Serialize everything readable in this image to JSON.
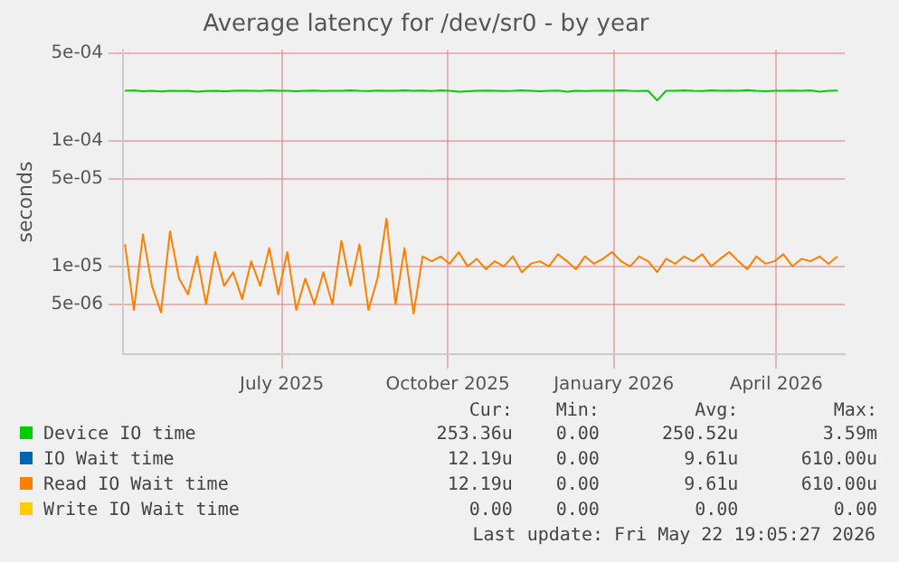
{
  "chart_data": {
    "type": "line",
    "title": "Average latency for /dev/sr0 - by year",
    "ylabel": "seconds",
    "log": "y",
    "grid": true,
    "legend": "bottom",
    "marker": "none",
    "x": [
      "2025-04-20",
      "2025-04-25",
      "2025-04-30",
      "2025-05-05",
      "2025-05-10",
      "2025-05-15",
      "2025-05-20",
      "2025-05-25",
      "2025-05-30",
      "2025-06-04",
      "2025-06-09",
      "2025-06-14",
      "2025-06-19",
      "2025-06-24",
      "2025-06-29",
      "2025-07-04",
      "2025-07-09",
      "2025-07-14",
      "2025-07-19",
      "2025-07-24",
      "2025-07-29",
      "2025-08-03",
      "2025-08-08",
      "2025-08-13",
      "2025-08-18",
      "2025-08-23",
      "2025-08-28",
      "2025-09-02",
      "2025-09-07",
      "2025-09-12",
      "2025-09-17",
      "2025-09-22",
      "2025-09-27",
      "2025-10-02",
      "2025-10-07",
      "2025-10-12",
      "2025-10-17",
      "2025-10-22",
      "2025-10-27",
      "2025-11-01",
      "2025-11-06",
      "2025-11-11",
      "2025-11-16",
      "2025-11-21",
      "2025-11-26",
      "2025-12-01",
      "2025-12-06",
      "2025-12-11",
      "2025-12-16",
      "2025-12-21",
      "2025-12-26",
      "2025-12-31",
      "2026-01-05",
      "2026-01-10",
      "2026-01-15",
      "2026-01-20",
      "2026-01-25",
      "2026-01-30",
      "2026-02-04",
      "2026-02-09",
      "2026-02-14",
      "2026-02-19",
      "2026-02-24",
      "2026-03-01",
      "2026-03-06",
      "2026-03-11",
      "2026-03-16",
      "2026-03-21",
      "2026-03-26",
      "2026-03-31",
      "2026-04-05",
      "2026-04-10",
      "2026-04-15",
      "2026-04-20",
      "2026-04-25",
      "2026-04-30",
      "2026-05-05",
      "2026-05-10",
      "2026-05-15",
      "2026-05-20"
    ],
    "xlim": [
      "2025-04-19",
      "2026-05-24"
    ],
    "xticks": [
      {
        "value": "2025-07-16",
        "label": "July 2025"
      },
      {
        "value": "2025-10-16",
        "label": "October 2025"
      },
      {
        "value": "2026-01-16",
        "label": "January 2026"
      },
      {
        "value": "2026-04-16",
        "label": "April 2026"
      }
    ],
    "ylim": [
      2e-06,
      0.00053
    ],
    "yticks": [
      {
        "value": 5e-06,
        "label": "5e-06"
      },
      {
        "value": 1e-05,
        "label": "1e-05"
      },
      {
        "value": 5e-05,
        "label": "5e-05"
      },
      {
        "value": 0.0001,
        "label": "1e-04"
      },
      {
        "value": 0.0005,
        "label": "5e-04"
      }
    ],
    "series": [
      {
        "name": "Device IO time",
        "color": "#00cc00",
        "values": [
          0.00025,
          0.000252,
          0.000248,
          0.00025,
          0.000247,
          0.00025,
          0.000249,
          0.00025,
          0.000246,
          0.000249,
          0.00025,
          0.000248,
          0.00025,
          0.000251,
          0.00025,
          0.000249,
          0.000252,
          0.00025,
          0.00025,
          0.000248,
          0.00025,
          0.000251,
          0.000249,
          0.00025,
          0.00025,
          0.000252,
          0.00025,
          0.000249,
          0.000251,
          0.00025,
          0.00025,
          0.000252,
          0.00025,
          0.000251,
          0.000249,
          0.000252,
          0.00025,
          0.000246,
          0.000248,
          0.00025,
          0.000251,
          0.00025,
          0.000249,
          0.00025,
          0.000252,
          0.00025,
          0.000248,
          0.00025,
          0.000251,
          0.000246,
          0.00025,
          0.000249,
          0.00025,
          0.000251,
          0.00025,
          0.000252,
          0.00025,
          0.000249,
          0.00025,
          0.00021,
          0.00025,
          0.00025,
          0.000252,
          0.00025,
          0.000249,
          0.000252,
          0.00025,
          0.000251,
          0.00025,
          0.000253,
          0.00025,
          0.000248,
          0.00025,
          0.00025,
          0.000251,
          0.00025,
          0.000252,
          0.000246,
          0.00025,
          0.000251
        ]
      },
      {
        "name": "IO Wait time",
        "color": "#0066b3",
        "values": [
          null,
          null,
          null,
          null,
          null,
          null,
          null,
          null,
          null,
          null,
          null,
          null,
          null,
          null,
          null,
          null,
          null,
          null,
          null,
          null,
          null,
          null,
          null,
          null,
          null,
          null,
          null,
          null,
          null,
          null,
          null,
          null,
          null,
          null,
          null,
          null,
          null,
          null,
          null,
          null,
          null,
          null,
          null,
          null,
          null,
          null,
          null,
          null,
          null,
          null,
          null,
          null,
          null,
          null,
          null,
          null,
          null,
          null,
          null,
          null,
          null,
          null,
          null,
          null,
          null,
          null,
          null,
          null,
          null,
          null,
          null,
          null,
          null,
          null,
          null,
          null,
          null,
          null,
          null,
          null
        ]
      },
      {
        "name": "Read IO Wait time",
        "color": "#ff8000",
        "values": [
          1.5e-05,
          4.5e-06,
          1.8e-05,
          7e-06,
          4.3e-06,
          1.9e-05,
          8e-06,
          6e-06,
          1.2e-05,
          5e-06,
          1.3e-05,
          7e-06,
          9e-06,
          5.5e-06,
          1.1e-05,
          7e-06,
          1.4e-05,
          6e-06,
          1.3e-05,
          4.5e-06,
          8e-06,
          5e-06,
          9e-06,
          5e-06,
          1.6e-05,
          7e-06,
          1.5e-05,
          4.5e-06,
          8e-06,
          2.4e-05,
          5e-06,
          1.4e-05,
          4.2e-06,
          1.2e-05,
          1.1e-05,
          1.2e-05,
          1.05e-05,
          1.3e-05,
          1e-05,
          1.15e-05,
          9.5e-06,
          1.1e-05,
          1e-05,
          1.2e-05,
          9e-06,
          1.05e-05,
          1.1e-05,
          1e-05,
          1.25e-05,
          1.1e-05,
          9.5e-06,
          1.2e-05,
          1.05e-05,
          1.15e-05,
          1.3e-05,
          1.1e-05,
          1e-05,
          1.2e-05,
          1.1e-05,
          9e-06,
          1.15e-05,
          1.05e-05,
          1.2e-05,
          1.1e-05,
          1.25e-05,
          1e-05,
          1.15e-05,
          1.3e-05,
          1.1e-05,
          9.5e-06,
          1.2e-05,
          1.05e-05,
          1.1e-05,
          1.25e-05,
          1e-05,
          1.15e-05,
          1.1e-05,
          1.2e-05,
          1.05e-05,
          1.2e-05
        ]
      },
      {
        "name": "Write IO Wait time",
        "color": "#ffcc00",
        "values": [
          null,
          null,
          null,
          null,
          null,
          null,
          null,
          null,
          null,
          null,
          null,
          null,
          null,
          null,
          null,
          null,
          null,
          null,
          null,
          null,
          null,
          null,
          null,
          null,
          null,
          null,
          null,
          null,
          null,
          null,
          null,
          null,
          null,
          null,
          null,
          null,
          null,
          null,
          null,
          null,
          null,
          null,
          null,
          null,
          null,
          null,
          null,
          null,
          null,
          null,
          null,
          null,
          null,
          null,
          null,
          null,
          null,
          null,
          null,
          null,
          null,
          null,
          null,
          null,
          null,
          null,
          null,
          null,
          null,
          null,
          null,
          null,
          null,
          null,
          null,
          null,
          null,
          null,
          null,
          null
        ]
      }
    ],
    "annotations": [
      "Cur:",
      "Min:",
      "Avg:",
      "Max:",
      "253.36u",
      "0.00",
      "250.52u",
      "3.59m",
      "12.19u",
      "0.00",
      "9.61u",
      "610.00u",
      "12.19u",
      "0.00",
      "9.61u",
      "610.00u",
      "0.00",
      "0.00",
      "0.00",
      "0.00",
      "Last update: Fri May 22 19:05:27 2026"
    ]
  }
}
